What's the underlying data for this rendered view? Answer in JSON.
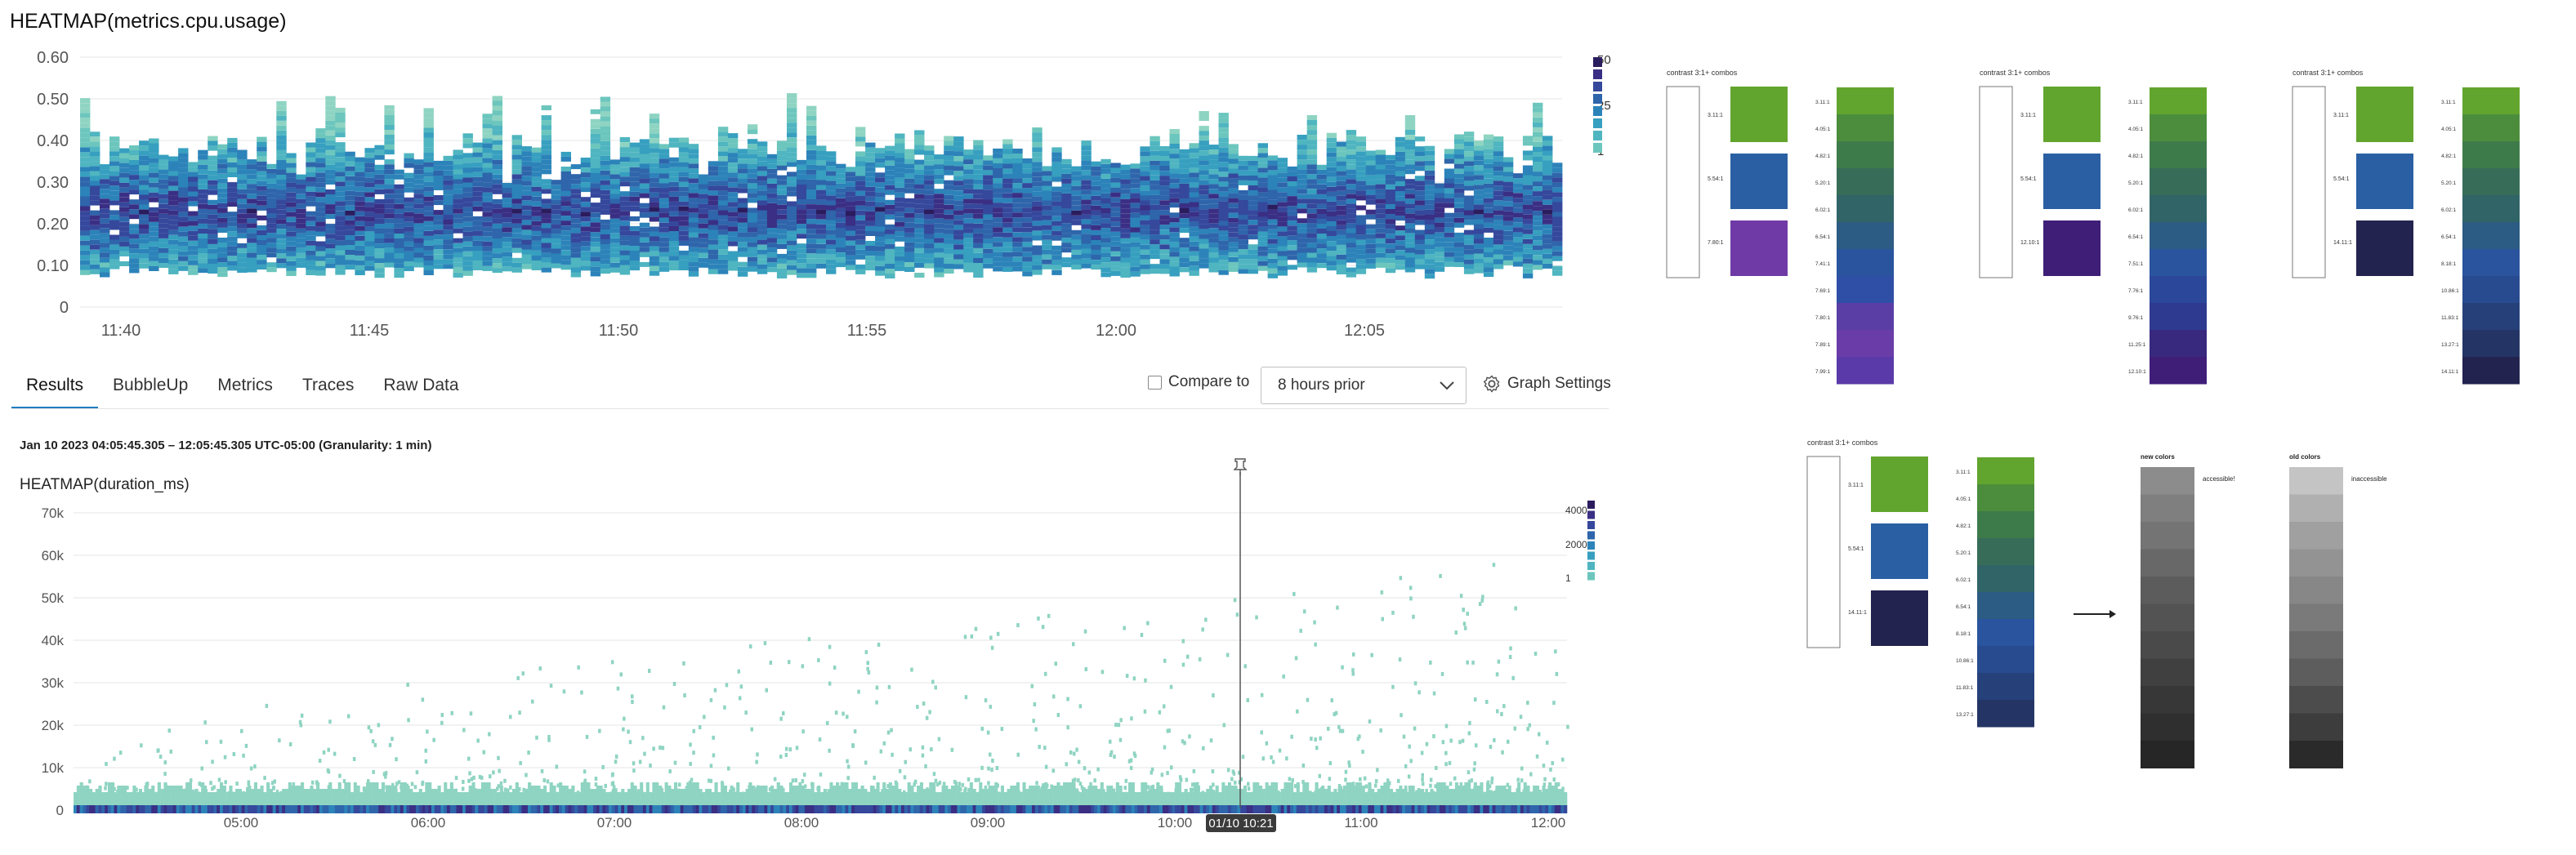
{
  "heatmap_top": {
    "title": "HEATMAP(metrics.cpu.usage)",
    "y_ticks": [
      "0.60",
      "0.50",
      "0.40",
      "0.30",
      "0.20",
      "0.10",
      "0"
    ],
    "x_ticks": [
      "11:40",
      "11:45",
      "11:50",
      "11:55",
      "12:00",
      "12:05"
    ],
    "legend_labels": [
      "50",
      "25",
      "1"
    ],
    "colors": [
      "#8fd4c2",
      "#6cc6bd",
      "#4fb5c0",
      "#379fbf",
      "#2c83b9",
      "#2e65ab",
      "#35489c",
      "#3a2f84",
      "#2b1c5e"
    ]
  },
  "tabs": {
    "items": [
      "Results",
      "BubbleUp",
      "Metrics",
      "Traces",
      "Raw Data"
    ],
    "active": "Results"
  },
  "toolbar": {
    "compare_label": "Compare to",
    "compare_value": "8 hours prior",
    "graph_settings_label": "Graph Settings"
  },
  "query": {
    "range_text": "Jan 10 2023 04:05:45.305 – 12:05:45.305 UTC-05:00 (Granularity: 1 min)"
  },
  "heatmap_bottom": {
    "title": "HEATMAP(duration_ms)",
    "y_ticks": [
      "70k",
      "60k",
      "50k",
      "40k",
      "30k",
      "20k",
      "10k",
      "0"
    ],
    "x_ticks": [
      "05:00",
      "06:00",
      "07:00",
      "08:00",
      "09:00",
      "10:00",
      "11:00",
      "12:00"
    ],
    "legend_labels": [
      "4000",
      "2000",
      "1"
    ],
    "cursor_label": "01/10 10:21",
    "pin_icon": "pin-icon"
  },
  "palette_panels": [
    {
      "title": "contrast 3:1+ combos",
      "box_labels": [
        "3.11:1",
        "5.54:1",
        "7.80:1"
      ],
      "swatches": [
        "#62a52e",
        "#2a60a3",
        "#6f3aa6"
      ],
      "ramp_labels": [
        "3.11:1",
        "4.05:1",
        "4.82:1",
        "5.20:1",
        "6.02:1",
        "6.54:1",
        "7.41:1",
        "7.69:1",
        "7.80:1",
        "7.89:1",
        "7.99:1"
      ],
      "ramp_colors": [
        "#62a52e",
        "#4b8d3d",
        "#3e7b4a",
        "#376d58",
        "#306467",
        "#2c5b83",
        "#2a549e",
        "#2f4ea6",
        "#5a3ea6",
        "#6a3ca8",
        "#5a3aa8"
      ]
    },
    {
      "title": "contrast 3:1+ combos",
      "box_labels": [
        "3.11:1",
        "5.54:1",
        "12.10:1"
      ],
      "swatches": [
        "#62a52e",
        "#2a60a3",
        "#3f1e78"
      ],
      "ramp_labels": [
        "3.11:1",
        "4.05:1",
        "4.82:1",
        "5.20:1",
        "6.02:1",
        "6.54:1",
        "7.51:1",
        "7.76:1",
        "9.76:1",
        "11.25:1",
        "12.10:1"
      ],
      "ramp_colors": [
        "#62a52e",
        "#4b8d3d",
        "#3e7b4a",
        "#376d58",
        "#306467",
        "#2c5b83",
        "#2a549e",
        "#2a479a",
        "#2e3a8f",
        "#38297e",
        "#3f1e78"
      ]
    },
    {
      "title": "contrast 3:1+ combos",
      "box_labels": [
        "3.11:1",
        "5.54:1",
        "14.11:1"
      ],
      "swatches": [
        "#62a52e",
        "#2a60a3",
        "#23234f"
      ],
      "ramp_labels": [
        "3.11:1",
        "4.05:1",
        "4.82:1",
        "5.20:1",
        "6.02:1",
        "6.54:1",
        "8.18:1",
        "10.86:1",
        "11.83:1",
        "13.27:1",
        "14.11:1"
      ],
      "ramp_colors": [
        "#62a52e",
        "#4b8d3d",
        "#3e7b4a",
        "#376d58",
        "#306467",
        "#2c5b83",
        "#2a549e",
        "#284a8f",
        "#26407a",
        "#243565",
        "#23234f"
      ]
    },
    {
      "title": "contrast 3:1+ combos",
      "box_labels": [
        "3.11:1",
        "5.54:1",
        "14.11:1"
      ],
      "swatches": [
        "#62a52e",
        "#2a60a3",
        "#23234f"
      ],
      "ramp_labels": [
        "3.11:1",
        "4.05:1",
        "4.82:1",
        "5.20:1",
        "6.02:1",
        "6.54:1",
        "8.18:1",
        "10.86:1",
        "11.83:1",
        "13.27:1"
      ],
      "ramp_colors": [
        "#62a52e",
        "#4b8d3d",
        "#3e7b4a",
        "#376d58",
        "#306467",
        "#2c5b83",
        "#2a549e",
        "#284a8f",
        "#26407a",
        "#243565"
      ]
    }
  ],
  "grayscale": {
    "new_title": "new colors",
    "new_note": "accessible!",
    "new_colors": [
      "#8c8c8c",
      "#7f7f7f",
      "#747474",
      "#686868",
      "#5c5c5c",
      "#535353",
      "#4a4a4a",
      "#404040",
      "#373737",
      "#2f2f2f",
      "#262626"
    ],
    "old_title": "old colors",
    "old_note": "inaccessible",
    "old_colors": [
      "#c4c4c4",
      "#b0b0b0",
      "#a0a0a0",
      "#939393",
      "#878787",
      "#7a7a7a",
      "#6b6b6b",
      "#5d5d5d",
      "#4c4c4c",
      "#3d3d3d",
      "#2a2a2a"
    ],
    "arrow_icon": "arrow-right-icon"
  }
}
